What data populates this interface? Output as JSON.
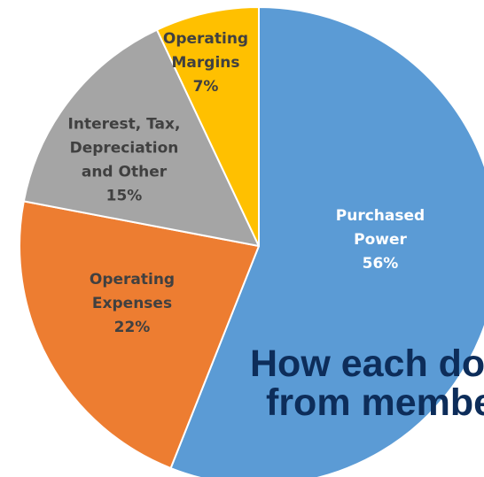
{
  "chart_data": {
    "type": "pie",
    "start_angle_deg": 0,
    "direction": "clockwise",
    "slices": [
      {
        "label_lines": [
          "Purchased",
          "Power",
          "56%"
        ],
        "label": "Purchased Power",
        "value": 56,
        "color": "#5b9bd5",
        "text_color": "#ffffff"
      },
      {
        "label_lines": [
          "Operating",
          "Expenses",
          "22%"
        ],
        "label": "Operating Expenses",
        "value": 22,
        "color": "#ed7d31",
        "text_color": "#404040"
      },
      {
        "label_lines": [
          "Interest, Tax,",
          "Depreciation",
          "and Other",
          "15%"
        ],
        "label": "Interest, Tax, Depreciation and Other",
        "value": 15,
        "color": "#a5a5a5",
        "text_color": "#404040"
      },
      {
        "label_lines": [
          "Operating",
          "Margins",
          "7%"
        ],
        "label": "Operating Margins",
        "value": 7,
        "color": "#ffc000",
        "text_color": "#404040"
      }
    ]
  },
  "overlay_title": {
    "line1": "How each dol",
    "line2": "from membe"
  }
}
